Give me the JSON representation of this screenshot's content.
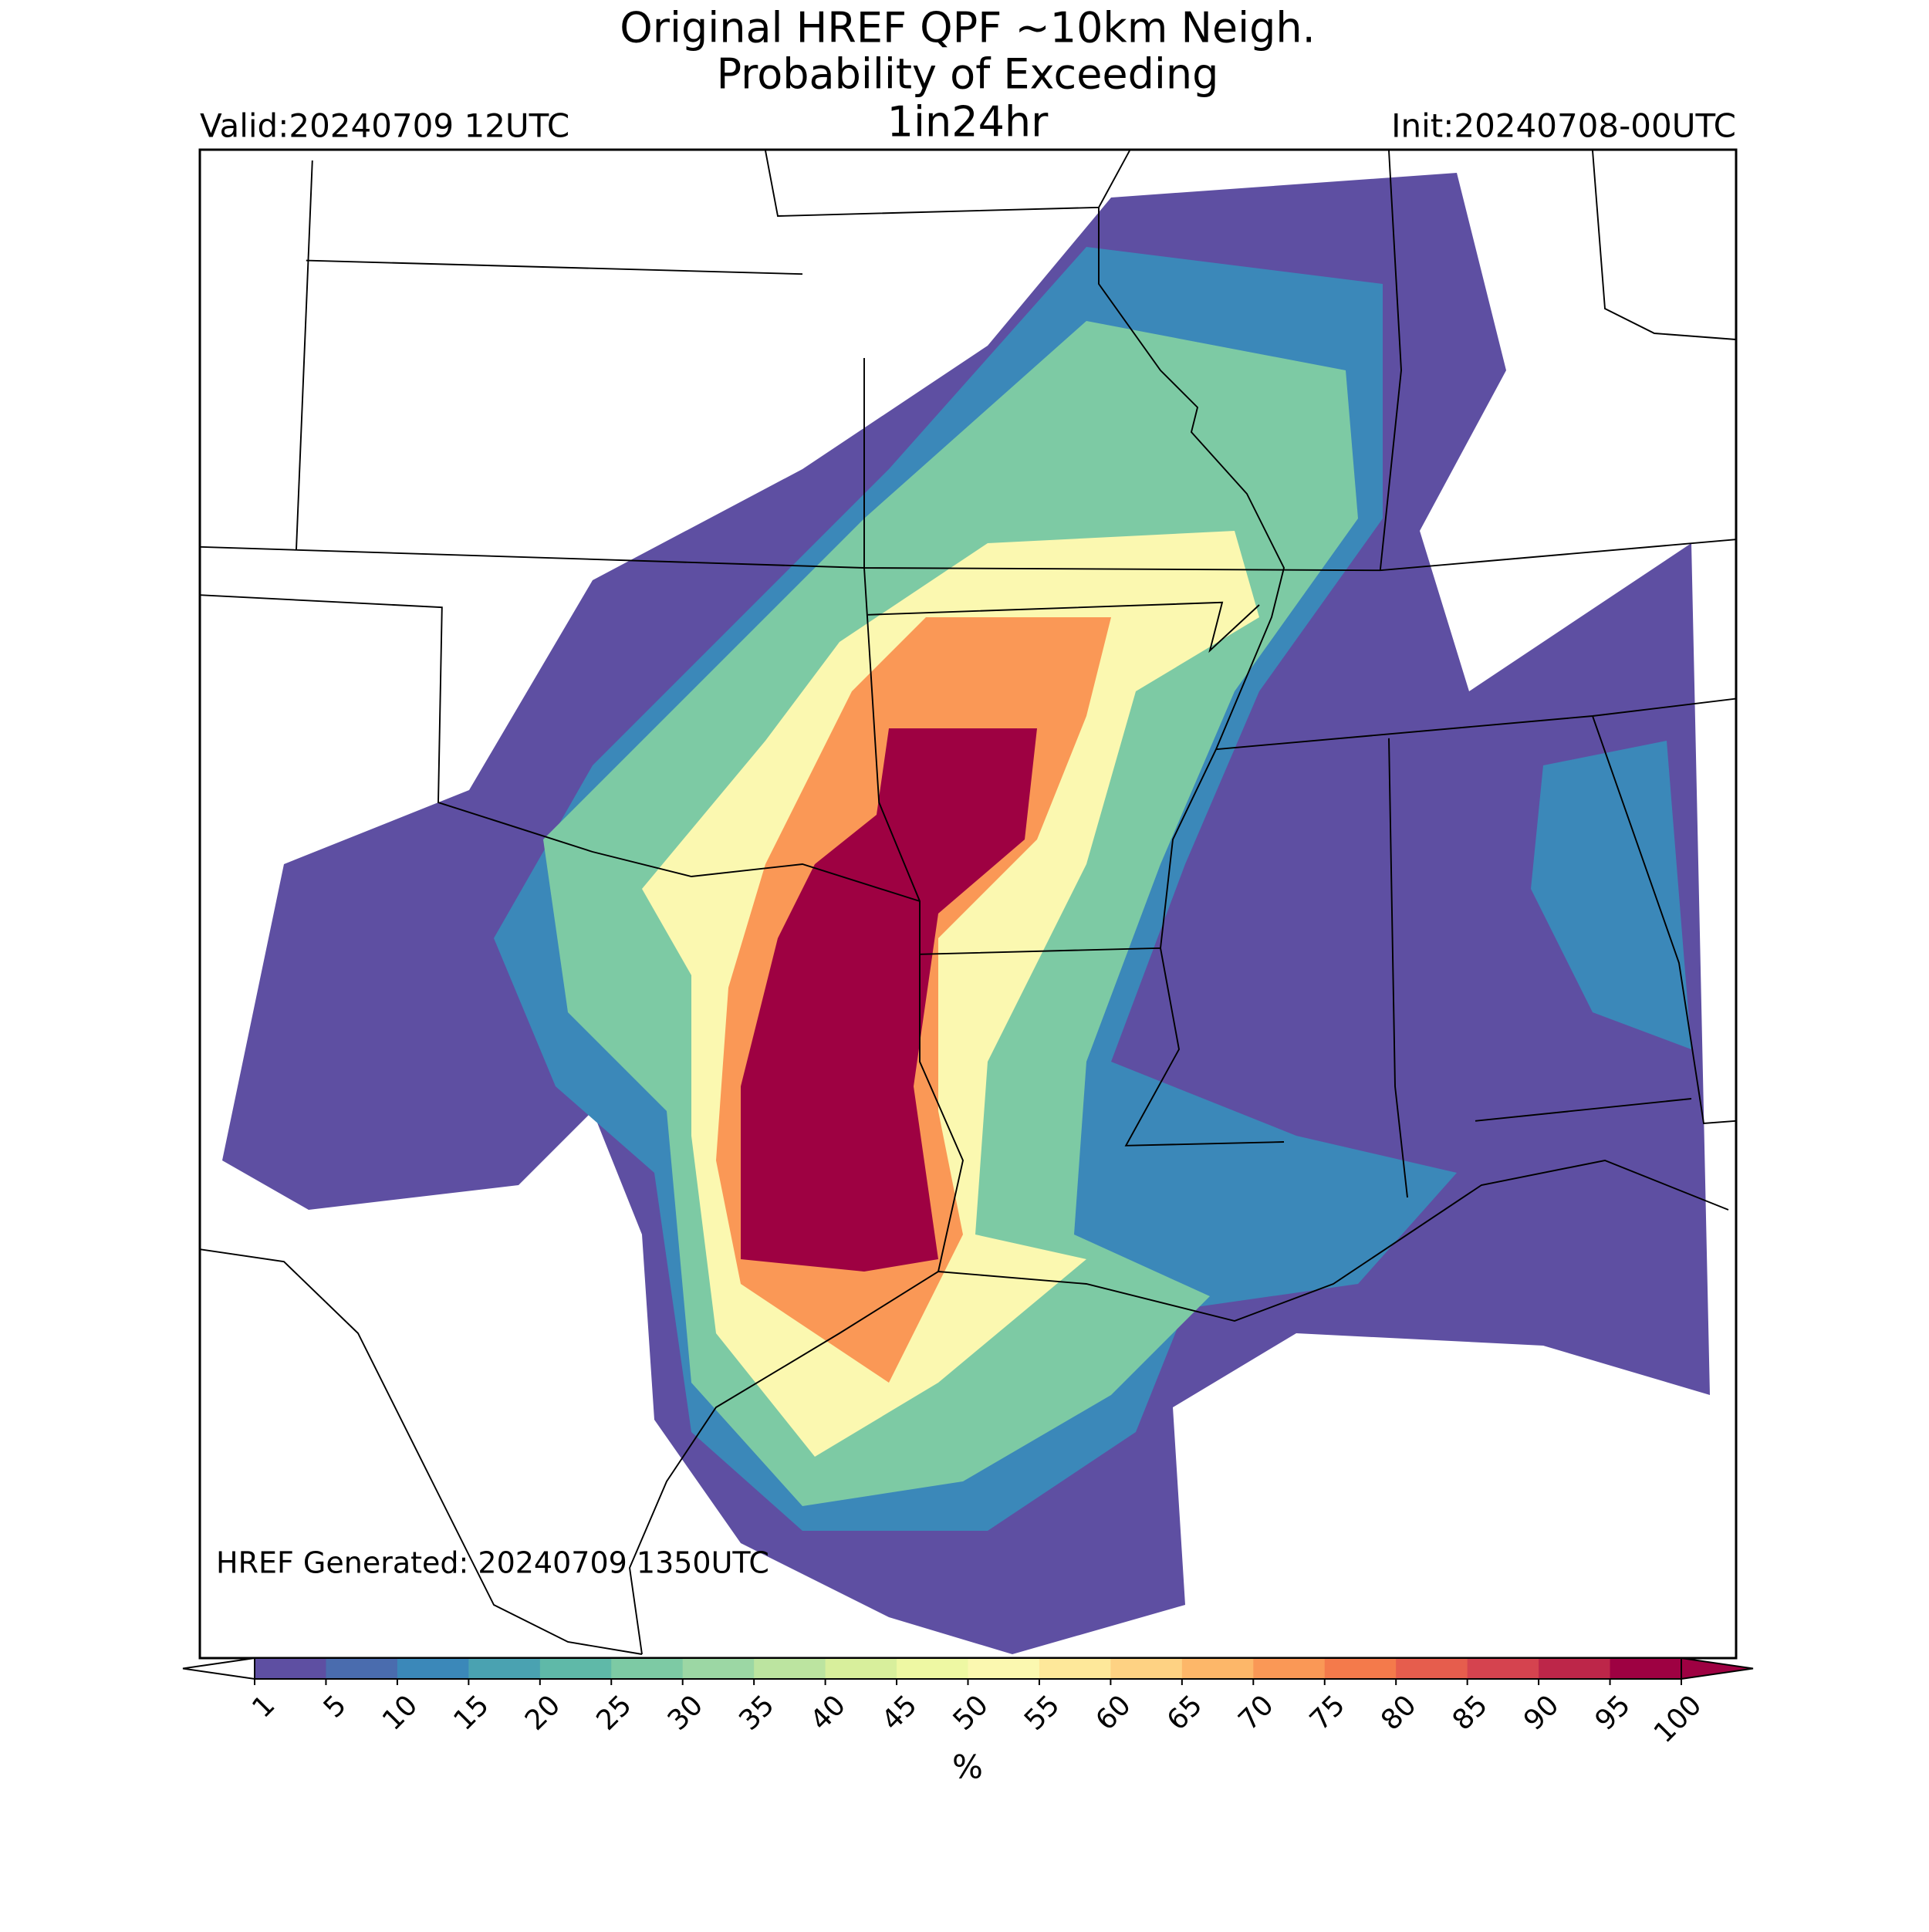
{
  "header": {
    "title": "Original HREF QPF ~10km Neigh.",
    "subtitle": "Probability of Exceeding",
    "threshold": "1in24hr",
    "valid": "Valid:20240709 12UTC",
    "init": "Init:20240708-00UTC"
  },
  "annotation": "HREF Generated: 20240709 1350UTC",
  "colorbar": {
    "levels": [
      1,
      5,
      10,
      15,
      20,
      25,
      30,
      35,
      40,
      45,
      50,
      55,
      60,
      65,
      70,
      75,
      80,
      85,
      90,
      95,
      100
    ],
    "colors": [
      "#5e4fa2",
      "#4a6cae",
      "#3b88b9",
      "#4aa2b1",
      "#5fb9a8",
      "#7dcaa4",
      "#9cd7a4",
      "#bce4a0",
      "#d8ef9c",
      "#eef8a3",
      "#fbf8b0",
      "#fee89a",
      "#fed283",
      "#fdb769",
      "#fa9856",
      "#f47a4b",
      "#e65d4d",
      "#d5434f",
      "#bd2649",
      "#9e0142"
    ],
    "label": "%"
  }
}
